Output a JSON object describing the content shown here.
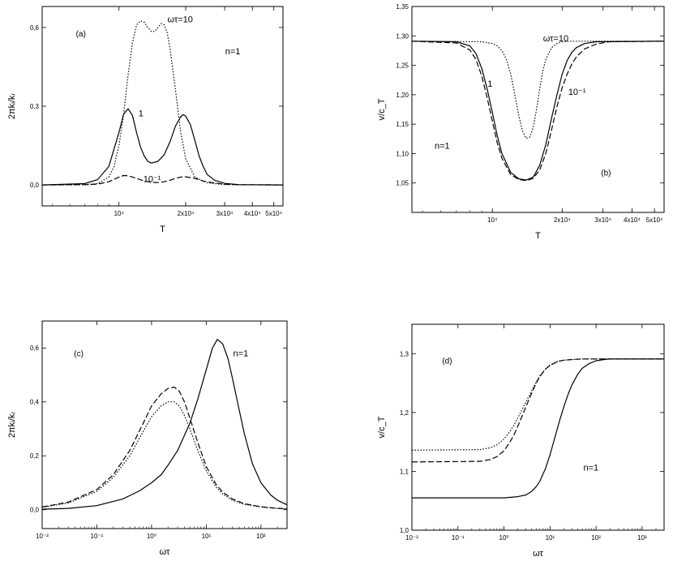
{
  "chart_data": [
    {
      "type": "line",
      "panel": "(a)",
      "annotations": [
        "(a)",
        "n=1",
        "ωτ=10",
        "1",
        "10⁻¹"
      ],
      "xlabel": "T",
      "ylabel": "2πkᵢ/kᵣ",
      "xscale": "log",
      "xlim": [
        4500,
        55000
      ],
      "ylim": [
        -0.08,
        0.68
      ],
      "xticks": [
        10000,
        20000,
        30000,
        40000,
        50000
      ],
      "xtick_labels": [
        "10⁴",
        "2x10⁴",
        "3x10⁴",
        "4x10⁴",
        "5x10⁴"
      ],
      "yticks": [
        0,
        0.3,
        0.6
      ],
      "ytick_labels": [
        "0,0",
        "0,3",
        "0,6"
      ],
      "series": [
        {
          "name": "ωτ=10",
          "style": "dotted",
          "x": [
            4500,
            7000,
            8000,
            9000,
            9500,
            10000,
            10500,
            11000,
            11500,
            12000,
            12500,
            13000,
            13500,
            14000,
            14500,
            15000,
            15500,
            16000,
            16500,
            17000,
            18000,
            19000,
            20000,
            22000,
            25000,
            30000,
            55000
          ],
          "y": [
            0,
            0.001,
            0.005,
            0.03,
            0.07,
            0.15,
            0.27,
            0.42,
            0.54,
            0.61,
            0.625,
            0.62,
            0.6,
            0.585,
            0.585,
            0.6,
            0.615,
            0.61,
            0.58,
            0.52,
            0.36,
            0.2,
            0.1,
            0.03,
            0.008,
            0.001,
            0
          ]
        },
        {
          "name": "1",
          "style": "solid",
          "x": [
            4500,
            7000,
            8000,
            9000,
            10000,
            10500,
            11000,
            11500,
            12000,
            12500,
            13000,
            13500,
            14000,
            15000,
            16000,
            17000,
            18000,
            19000,
            19500,
            20000,
            21000,
            22000,
            23000,
            24000,
            25000,
            27000,
            30000,
            35000,
            55000
          ],
          "y": [
            0,
            0.005,
            0.02,
            0.07,
            0.2,
            0.27,
            0.29,
            0.265,
            0.2,
            0.145,
            0.11,
            0.09,
            0.083,
            0.09,
            0.115,
            0.165,
            0.225,
            0.26,
            0.268,
            0.262,
            0.23,
            0.17,
            0.11,
            0.07,
            0.04,
            0.018,
            0.006,
            0.001,
            0
          ]
        },
        {
          "name": "10⁻¹",
          "style": "dashed",
          "x": [
            4500,
            7000,
            8000,
            9000,
            10000,
            10500,
            11000,
            12000,
            13000,
            14000,
            15000,
            16000,
            17000,
            18000,
            19000,
            20000,
            22000,
            24000,
            27000,
            30000,
            35000,
            55000
          ],
          "y": [
            0,
            0.001,
            0.003,
            0.012,
            0.03,
            0.036,
            0.035,
            0.025,
            0.015,
            0.01,
            0.009,
            0.012,
            0.018,
            0.025,
            0.03,
            0.031,
            0.025,
            0.015,
            0.007,
            0.003,
            0.001,
            0
          ]
        }
      ]
    },
    {
      "type": "line",
      "panel": "(b)",
      "annotations": [
        "(b)",
        "n=1",
        "ωτ=10",
        "1",
        "10⁻¹"
      ],
      "xlabel": "T",
      "ylabel": "v/c_T",
      "xscale": "log",
      "xlim": [
        4500,
        55000
      ],
      "ylim": [
        1.0,
        1.35
      ],
      "xticks": [
        10000,
        20000,
        30000,
        40000,
        50000
      ],
      "xtick_labels": [
        "10⁴",
        "2x10⁴",
        "3x10⁴",
        "4x10⁴",
        "5x10⁴"
      ],
      "yticks": [
        1.05,
        1.1,
        1.15,
        1.2,
        1.25,
        1.3,
        1.35
      ],
      "ytick_labels": [
        "1,05",
        "1,10",
        "1,15",
        "1,20",
        "1,25",
        "1,30",
        "1,35"
      ],
      "series": [
        {
          "name": "ωτ=10",
          "style": "dotted",
          "x": [
            4500,
            9000,
            10000,
            10500,
            11000,
            11500,
            12000,
            12500,
            13000,
            13500,
            14000,
            14500,
            15000,
            15500,
            16000,
            16500,
            17000,
            18000,
            19000,
            20000,
            22000,
            55000
          ],
          "y": [
            1.291,
            1.29,
            1.287,
            1.283,
            1.275,
            1.26,
            1.235,
            1.2,
            1.165,
            1.138,
            1.126,
            1.128,
            1.145,
            1.175,
            1.21,
            1.24,
            1.26,
            1.28,
            1.287,
            1.29,
            1.291,
            1.291
          ]
        },
        {
          "name": "1",
          "style": "solid",
          "x": [
            4500,
            7000,
            8000,
            8500,
            9000,
            9500,
            10000,
            10500,
            11000,
            12000,
            13000,
            14000,
            15000,
            16000,
            17000,
            18000,
            19000,
            20000,
            21000,
            22000,
            23000,
            25000,
            28000,
            55000
          ],
          "y": [
            1.291,
            1.29,
            1.283,
            1.27,
            1.245,
            1.21,
            1.17,
            1.13,
            1.1,
            1.068,
            1.057,
            1.055,
            1.06,
            1.08,
            1.115,
            1.16,
            1.2,
            1.235,
            1.258,
            1.272,
            1.28,
            1.287,
            1.29,
            1.291
          ]
        },
        {
          "name": "10⁻¹",
          "style": "dashed",
          "x": [
            4500,
            7000,
            8000,
            8500,
            9000,
            9500,
            10000,
            10500,
            11000,
            12000,
            13000,
            14000,
            15000,
            16000,
            17000,
            18000,
            19000,
            20000,
            21000,
            22000,
            23000,
            25000,
            28000,
            32000,
            55000
          ],
          "y": [
            1.291,
            1.288,
            1.276,
            1.26,
            1.232,
            1.195,
            1.155,
            1.118,
            1.092,
            1.064,
            1.056,
            1.054,
            1.058,
            1.072,
            1.1,
            1.14,
            1.18,
            1.212,
            1.235,
            1.252,
            1.264,
            1.278,
            1.286,
            1.29,
            1.291
          ]
        }
      ]
    },
    {
      "type": "line",
      "panel": "(c)",
      "annotations": [
        "(c)",
        "n=1"
      ],
      "xlabel": "ωτ",
      "ylabel": "2πkᵢ/kᵣ",
      "xscale": "log",
      "xlim": [
        0.01,
        300
      ],
      "ylim": [
        -0.07,
        0.7
      ],
      "xticks": [
        0.01,
        0.1,
        1,
        10,
        100
      ],
      "xtick_labels": [
        "10⁻²",
        "10⁻¹",
        "10⁰",
        "10¹",
        "10²"
      ],
      "yticks": [
        0,
        0.2,
        0.4,
        0.6
      ],
      "ytick_labels": [
        "0,0",
        "0,2",
        "0,4",
        "0,6"
      ],
      "series": [
        {
          "name": "solid",
          "style": "solid",
          "x": [
            0.01,
            0.03,
            0.1,
            0.3,
            0.6,
            1,
            1.5,
            2,
            3,
            5,
            7,
            10,
            13,
            16,
            20,
            25,
            30,
            40,
            50,
            70,
            100,
            150,
            200,
            300
          ],
          "y": [
            0.002,
            0.005,
            0.015,
            0.04,
            0.07,
            0.1,
            0.13,
            0.165,
            0.22,
            0.32,
            0.41,
            0.52,
            0.6,
            0.632,
            0.615,
            0.56,
            0.49,
            0.37,
            0.28,
            0.17,
            0.1,
            0.055,
            0.035,
            0.018
          ]
        },
        {
          "name": "dashed",
          "style": "dashed",
          "x": [
            0.01,
            0.03,
            0.1,
            0.2,
            0.4,
            0.7,
            1,
            1.5,
            2,
            2.6,
            3.2,
            4,
            5,
            7,
            10,
            15,
            20,
            30,
            50,
            100,
            200,
            300
          ],
          "y": [
            0.01,
            0.028,
            0.075,
            0.13,
            0.22,
            0.32,
            0.385,
            0.43,
            0.45,
            0.455,
            0.44,
            0.4,
            0.34,
            0.25,
            0.16,
            0.095,
            0.065,
            0.04,
            0.022,
            0.011,
            0.005,
            0.004
          ]
        },
        {
          "name": "dotted",
          "style": "dotted",
          "x": [
            0.01,
            0.03,
            0.1,
            0.2,
            0.4,
            0.7,
            1,
            1.5,
            2,
            2.6,
            3.2,
            4,
            5,
            7,
            10,
            15,
            20,
            30,
            50,
            100,
            200,
            300
          ],
          "y": [
            0.009,
            0.025,
            0.068,
            0.12,
            0.2,
            0.29,
            0.345,
            0.385,
            0.4,
            0.4,
            0.385,
            0.35,
            0.3,
            0.22,
            0.145,
            0.085,
            0.058,
            0.035,
            0.02,
            0.01,
            0.005,
            0.003
          ]
        }
      ]
    },
    {
      "type": "line",
      "panel": "(d)",
      "annotations": [
        "(d)",
        "n=1"
      ],
      "xlabel": "ωτ",
      "ylabel": "v/c_T",
      "xscale": "log",
      "xlim": [
        0.01,
        3000
      ],
      "ylim": [
        1.0,
        1.35
      ],
      "xticks": [
        0.01,
        0.1,
        1,
        10,
        100,
        1000
      ],
      "xtick_labels": [
        "10⁻²",
        "10⁻¹",
        "10⁰",
        "10¹",
        "10²",
        "10³"
      ],
      "yticks": [
        1.0,
        1.1,
        1.2,
        1.3
      ],
      "ytick_labels": [
        "1,0",
        "1,1",
        "1,2",
        "1,3"
      ],
      "series": [
        {
          "name": "solid",
          "style": "solid",
          "x": [
            0.01,
            1,
            2,
            3,
            4,
            5,
            6,
            8,
            10,
            13,
            16,
            20,
            25,
            30,
            40,
            50,
            70,
            100,
            150,
            200,
            300,
            500,
            1000,
            3000
          ],
          "y": [
            1.055,
            1.055,
            1.057,
            1.06,
            1.066,
            1.074,
            1.083,
            1.105,
            1.128,
            1.16,
            1.185,
            1.21,
            1.232,
            1.247,
            1.265,
            1.275,
            1.283,
            1.288,
            1.29,
            1.291,
            1.291,
            1.291,
            1.291,
            1.291
          ]
        },
        {
          "name": "dashed",
          "style": "dashed",
          "x": [
            0.01,
            0.3,
            0.5,
            0.7,
            1,
            1.3,
            1.6,
            2,
            2.5,
            3,
            4,
            5,
            6,
            8,
            10,
            15,
            20,
            30,
            50,
            100,
            3000
          ],
          "y": [
            1.116,
            1.117,
            1.12,
            1.125,
            1.135,
            1.148,
            1.16,
            1.177,
            1.195,
            1.21,
            1.233,
            1.25,
            1.261,
            1.274,
            1.28,
            1.287,
            1.289,
            1.29,
            1.291,
            1.291,
            1.291
          ]
        },
        {
          "name": "dotted",
          "style": "dotted",
          "x": [
            0.01,
            0.3,
            0.5,
            0.7,
            1,
            1.3,
            1.6,
            2,
            2.5,
            3,
            4,
            5,
            6,
            8,
            10,
            15,
            20,
            30,
            50,
            100,
            3000
          ],
          "y": [
            1.136,
            1.137,
            1.14,
            1.145,
            1.155,
            1.166,
            1.177,
            1.191,
            1.206,
            1.218,
            1.237,
            1.252,
            1.262,
            1.274,
            1.281,
            1.287,
            1.289,
            1.29,
            1.291,
            1.291,
            1.291
          ]
        }
      ]
    }
  ]
}
